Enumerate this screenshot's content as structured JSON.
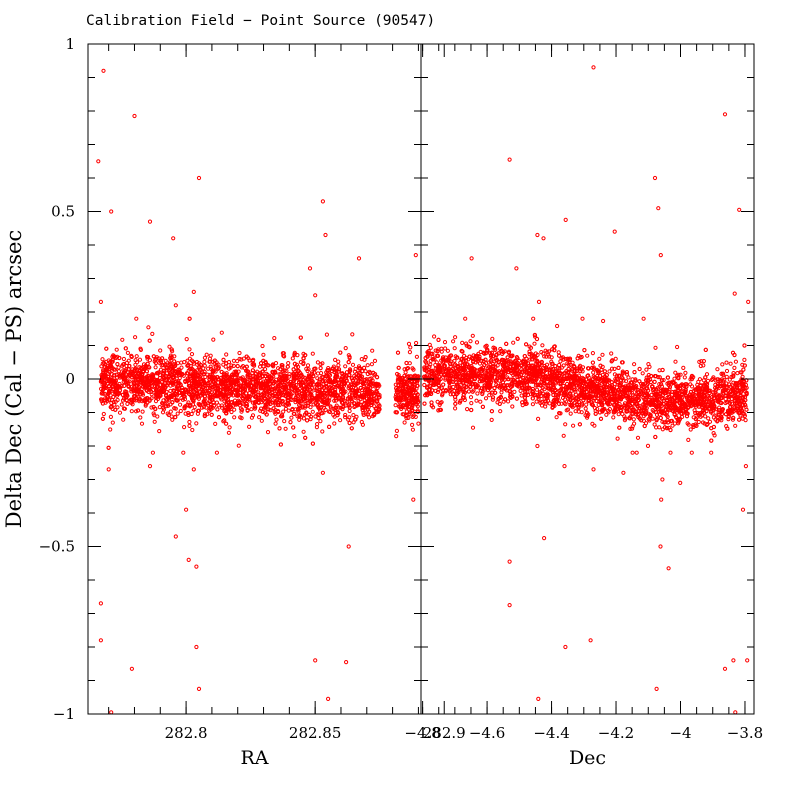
{
  "chart_data": {
    "type": "scatter",
    "title": "Calibration Field − Point Source (90547)",
    "ylabel": "Delta Dec (Cal − PS) arcsec",
    "marker_color": "#ff0000",
    "ylim": [
      -1,
      1
    ],
    "y_ticks": [
      1,
      0.5,
      0,
      -0.5,
      -1
    ],
    "y_tick_labels": [
      "1",
      "0.5",
      "0",
      "−0.5",
      "−1"
    ],
    "panels": [
      {
        "name": "ra-panel",
        "xlabel": "RA",
        "xlim": [
          282.762,
          282.891
        ],
        "x_ticks": [
          282.8,
          282.85,
          282.9
        ],
        "x_tick_labels": [
          "282.8",
          "282.85",
          "282.9"
        ],
        "x_minor_step": 0.01,
        "outliers": [
          [
            282.768,
            0.92
          ],
          [
            282.766,
            0.65
          ],
          [
            282.771,
            0.5
          ],
          [
            282.805,
            0.6
          ],
          [
            282.795,
            0.42
          ],
          [
            282.786,
            0.47
          ],
          [
            282.78,
            0.785
          ],
          [
            282.853,
            0.53
          ],
          [
            282.854,
            0.43
          ],
          [
            282.867,
            0.36
          ],
          [
            282.889,
            0.37
          ],
          [
            282.848,
            0.33
          ],
          [
            282.85,
            0.25
          ],
          [
            282.803,
            0.26
          ],
          [
            282.767,
            0.23
          ],
          [
            282.796,
            0.22
          ],
          [
            282.77,
            -0.27
          ],
          [
            282.803,
            -0.27
          ],
          [
            282.786,
            -0.26
          ],
          [
            282.853,
            -0.28
          ],
          [
            282.888,
            -0.36
          ],
          [
            282.8,
            -0.39
          ],
          [
            282.796,
            -0.47
          ],
          [
            282.801,
            -0.54
          ],
          [
            282.804,
            -0.56
          ],
          [
            282.863,
            -0.5
          ],
          [
            282.767,
            -0.67
          ],
          [
            282.767,
            -0.78
          ],
          [
            282.804,
            -0.8
          ],
          [
            282.779,
            -0.865
          ],
          [
            282.805,
            -0.925
          ],
          [
            282.85,
            -0.84
          ],
          [
            282.862,
            -0.845
          ],
          [
            282.855,
            -0.955
          ],
          [
            282.771,
            -0.995
          ]
        ]
      },
      {
        "name": "dec-panel",
        "xlabel": "Dec",
        "xlim": [
          -4.805,
          -3.772
        ],
        "x_ticks": [
          -4.8,
          -4.6,
          -4.4,
          -4.2,
          -4,
          -3.8
        ],
        "x_tick_labels": [
          "−4.8",
          "−4.6",
          "−4.4",
          "−4.2",
          "−4",
          "−3.8"
        ],
        "x_minor_step": 0.05,
        "outliers": [
          [
            -4.27,
            0.93
          ],
          [
            -3.862,
            0.79
          ],
          [
            -4.53,
            0.655
          ],
          [
            -4.079,
            0.6
          ],
          [
            -4.069,
            0.51
          ],
          [
            -3.818,
            0.505
          ],
          [
            -4.356,
            0.475
          ],
          [
            -4.444,
            0.43
          ],
          [
            -4.204,
            0.44
          ],
          [
            -4.425,
            0.42
          ],
          [
            -4.061,
            0.37
          ],
          [
            -4.648,
            0.36
          ],
          [
            -4.509,
            0.33
          ],
          [
            -4.439,
            0.23
          ],
          [
            -3.832,
            0.255
          ],
          [
            -3.79,
            0.23
          ],
          [
            -4.27,
            -0.27
          ],
          [
            -4.177,
            -0.28
          ],
          [
            -4.056,
            -0.3
          ],
          [
            -4.06,
            -0.36
          ],
          [
            -4.444,
            -0.2
          ],
          [
            -4.36,
            -0.26
          ],
          [
            -4.001,
            -0.31
          ],
          [
            -3.806,
            -0.39
          ],
          [
            -3.797,
            -0.26
          ],
          [
            -4.53,
            -0.545
          ],
          [
            -4.423,
            -0.475
          ],
          [
            -4.062,
            -0.5
          ],
          [
            -4.037,
            -0.565
          ],
          [
            -4.53,
            -0.675
          ],
          [
            -4.357,
            -0.8
          ],
          [
            -4.279,
            -0.78
          ],
          [
            -3.862,
            -0.865
          ],
          [
            -3.836,
            -0.84
          ],
          [
            -3.793,
            -0.84
          ],
          [
            -4.441,
            -0.955
          ],
          [
            -4.074,
            -0.925
          ],
          [
            -3.83,
            -0.995
          ]
        ]
      }
    ]
  }
}
